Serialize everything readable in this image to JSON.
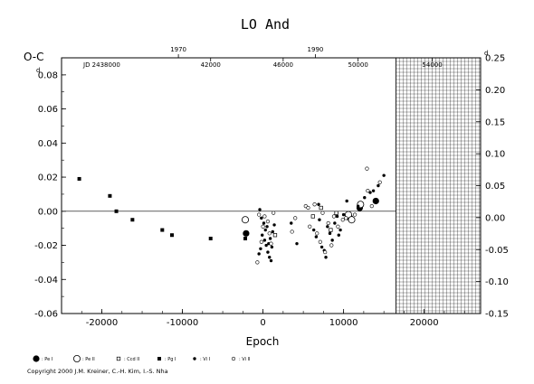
{
  "chart_data": {
    "type": "scatter",
    "title": "LO And",
    "ylabel": "O-C",
    "xlabel": "Epoch",
    "xlim": [
      -25000,
      27000
    ],
    "ylim": [
      -0.06,
      0.09
    ],
    "y_ticks": [
      "0.08",
      "0.06",
      "0.04",
      "0.02",
      "0.00",
      "-0.02",
      "-0.04",
      "-0.06"
    ],
    "y_tick_values": [
      0.08,
      0.06,
      0.04,
      0.02,
      0.0,
      -0.02,
      -0.04,
      -0.06
    ],
    "y_unit_mark": "d",
    "right_ylim": [
      -0.15,
      0.25
    ],
    "right_y_ticks": [
      "0.25",
      "0.20",
      "0.15",
      "0.10",
      "0.05",
      "0.00",
      "-0.05",
      "-0.10",
      "-0.15"
    ],
    "right_y_tick_values": [
      0.25,
      0.2,
      0.15,
      0.1,
      0.05,
      0.0,
      -0.05,
      -0.1,
      -0.15
    ],
    "x_ticks": [
      "-20000",
      "-10000",
      "0",
      "10000",
      "20000"
    ],
    "x_tick_values": [
      -20000,
      -10000,
      0,
      10000,
      20000
    ],
    "year_ticks": [
      {
        "label": "1970",
        "epoch": -10500
      },
      {
        "label": "1990",
        "epoch": 6500
      }
    ],
    "jd_prefix": "JD 2438000",
    "jd_ticks": [
      {
        "label": "42000",
        "epoch": -6500
      },
      {
        "label": "46000",
        "epoch": 2500
      },
      {
        "label": "50000",
        "epoch": 11800
      },
      {
        "label": "54000",
        "epoch": 21000
      }
    ],
    "future_region": [
      16500,
      27000
    ],
    "series": [
      {
        "name": "Pe I",
        "marker": "filled-circle-large",
        "points": [
          [
            -2100,
            -0.013
          ],
          [
            10800,
            -0.004
          ],
          [
            12000,
            0.002
          ],
          [
            14000,
            0.006
          ]
        ]
      },
      {
        "name": "Pe II",
        "marker": "open-circle-large",
        "points": [
          [
            -2200,
            -0.005
          ],
          [
            10600,
            -0.002
          ],
          [
            11000,
            -0.005
          ],
          [
            12100,
            0.004
          ]
        ]
      },
      {
        "name": "Ccd II",
        "marker": "open-square",
        "points": [
          [
            1500,
            -0.014
          ],
          [
            6200,
            -0.003
          ],
          [
            7200,
            0.002
          ],
          [
            8400,
            -0.011
          ],
          [
            9100,
            -0.001
          ]
        ]
      },
      {
        "name": "Pg I",
        "marker": "filled-square",
        "points": [
          [
            -22800,
            0.019
          ],
          [
            -19000,
            0.009
          ],
          [
            -18200,
            0.0
          ],
          [
            -16200,
            -0.005
          ],
          [
            -12500,
            -0.011
          ],
          [
            -11300,
            -0.014
          ],
          [
            -6500,
            -0.016
          ],
          [
            -2200,
            -0.016
          ]
        ]
      },
      {
        "name": "Vi I",
        "marker": "filled-dot",
        "points": [
          [
            -400,
            0.001
          ],
          [
            -200,
            -0.004
          ],
          [
            100,
            -0.007
          ],
          [
            300,
            -0.011
          ],
          [
            -100,
            -0.014
          ],
          [
            200,
            -0.017
          ],
          [
            400,
            -0.02
          ],
          [
            -300,
            -0.022
          ],
          [
            600,
            -0.024
          ],
          [
            800,
            -0.027
          ],
          [
            1000,
            -0.029
          ],
          [
            500,
            -0.009
          ],
          [
            1200,
            -0.012
          ],
          [
            900,
            -0.016
          ],
          [
            700,
            -0.019
          ],
          [
            -500,
            -0.025
          ],
          [
            1100,
            -0.021
          ],
          [
            1400,
            -0.008
          ],
          [
            3500,
            -0.007
          ],
          [
            4200,
            -0.019
          ],
          [
            6300,
            -0.011
          ],
          [
            6600,
            -0.015
          ],
          [
            7000,
            -0.005
          ],
          [
            7300,
            -0.021
          ],
          [
            7600,
            -0.023
          ],
          [
            8000,
            -0.009
          ],
          [
            8300,
            -0.013
          ],
          [
            8600,
            -0.017
          ],
          [
            8900,
            -0.007
          ],
          [
            9200,
            -0.003
          ],
          [
            9600,
            -0.011
          ],
          [
            10000,
            -0.002
          ],
          [
            10400,
            0.006
          ],
          [
            11800,
            0.003
          ],
          [
            12600,
            0.008
          ],
          [
            13300,
            0.011
          ],
          [
            13700,
            0.012
          ],
          [
            14300,
            0.015
          ],
          [
            15000,
            0.021
          ],
          [
            6900,
            0.004
          ],
          [
            7800,
            -0.027
          ],
          [
            9400,
            -0.014
          ]
        ]
      },
      {
        "name": "Vi II",
        "marker": "open-dot",
        "points": [
          [
            -500,
            -0.002
          ],
          [
            0,
            -0.009
          ],
          [
            200,
            -0.003
          ],
          [
            -200,
            -0.018
          ],
          [
            600,
            -0.006
          ],
          [
            800,
            -0.013
          ],
          [
            1000,
            -0.019
          ],
          [
            1300,
            -0.001
          ],
          [
            3600,
            -0.012
          ],
          [
            4000,
            -0.004
          ],
          [
            5300,
            0.003
          ],
          [
            5800,
            -0.009
          ],
          [
            6400,
            0.004
          ],
          [
            6700,
            -0.013
          ],
          [
            7100,
            -0.018
          ],
          [
            7400,
            -0.001
          ],
          [
            7700,
            -0.024
          ],
          [
            8100,
            -0.007
          ],
          [
            8500,
            -0.02
          ],
          [
            8800,
            -0.003
          ],
          [
            9300,
            -0.009
          ],
          [
            9900,
            -0.005
          ],
          [
            10300,
            -0.004
          ],
          [
            11400,
            -0.002
          ],
          [
            12900,
            0.025
          ],
          [
            13500,
            0.003
          ],
          [
            14500,
            0.017
          ],
          [
            13000,
            0.012
          ],
          [
            5600,
            0.002
          ],
          [
            -700,
            -0.03
          ]
        ]
      }
    ],
    "legend": [
      {
        "label": ": Pe I",
        "marker": "filled-circle-large"
      },
      {
        "label": ": Pe II",
        "marker": "open-circle-large"
      },
      {
        "label": ": Ccd II",
        "marker": "open-square"
      },
      {
        "label": ": Pg I",
        "marker": "filled-square"
      },
      {
        "label": ": Vi I",
        "marker": "filled-dot"
      },
      {
        "label": ": Vi II",
        "marker": "open-dot"
      }
    ],
    "legend_placement": "bottom-left",
    "copyright": "Copyright 2000 J.M. Kreiner, C.-H. Kim, I.-S. Nha"
  }
}
